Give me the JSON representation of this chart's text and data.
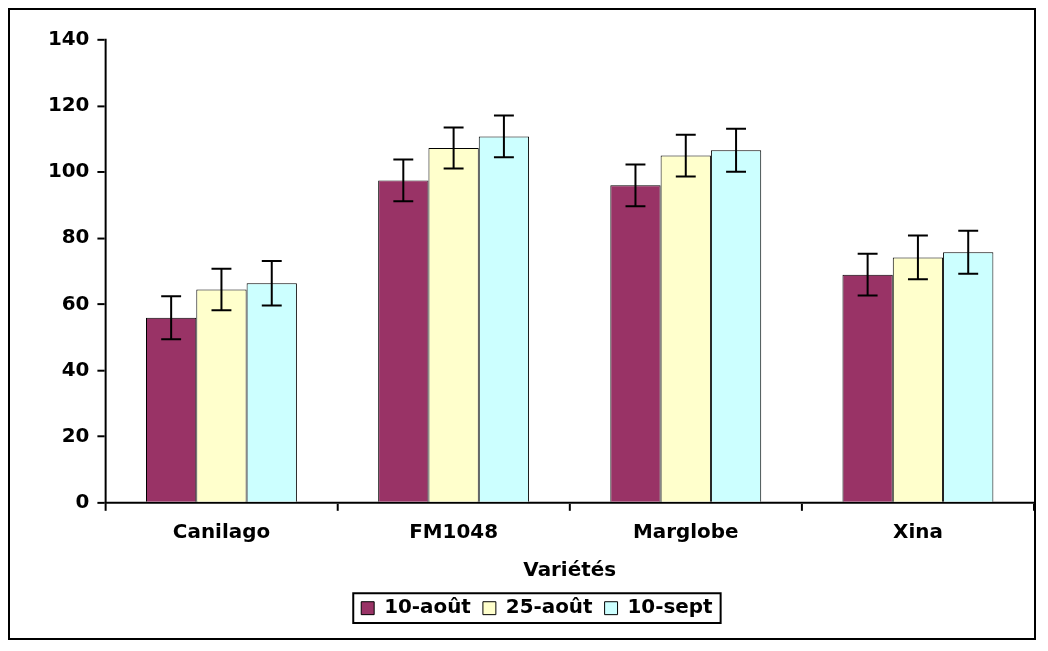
{
  "chart_data": {
    "type": "bar",
    "xlabel": "Variétés",
    "categories": [
      "Canilago",
      "FM1048",
      "Marglobe",
      "Xina"
    ],
    "series": [
      {
        "name": "10-août",
        "color": "#993366",
        "values": [
          56,
          97.5,
          96,
          69
        ],
        "errors": [
          6.5,
          6.3,
          6.3,
          6.3
        ]
      },
      {
        "name": "25-août",
        "color": "#ffffcc",
        "values": [
          64.5,
          107.3,
          105,
          74.2
        ],
        "errors": [
          6.3,
          6.2,
          6.3,
          6.6
        ]
      },
      {
        "name": "10-sept",
        "color": "#ccffff",
        "values": [
          66.4,
          110.8,
          106.6,
          75.8
        ],
        "errors": [
          6.7,
          6.3,
          6.5,
          6.5
        ]
      }
    ],
    "ylim": [
      0,
      140
    ],
    "yticks": [
      0,
      20,
      40,
      60,
      80,
      100,
      120,
      140
    ],
    "legend": "bottom"
  }
}
